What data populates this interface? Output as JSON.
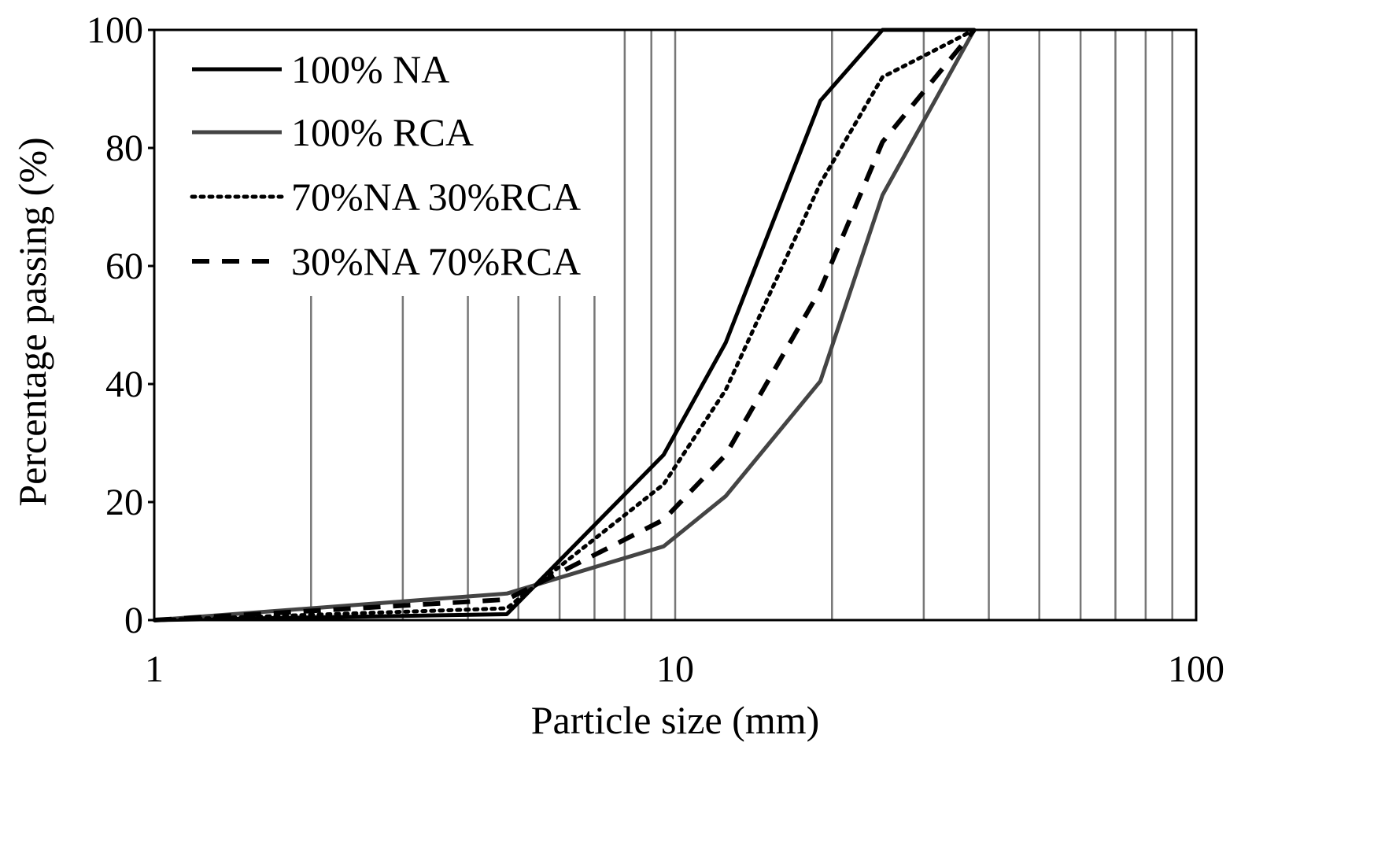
{
  "chart_data": {
    "type": "line",
    "x_scale": "log",
    "title": "",
    "xlabel": "Particle size (mm)",
    "ylabel": "Percentage passing (%)",
    "xlim": [
      1,
      100
    ],
    "ylim": [
      0,
      100
    ],
    "x_ticks": [
      {
        "value": 1,
        "label": "1"
      },
      {
        "value": 10,
        "label": "10"
      },
      {
        "value": 100,
        "label": "100"
      }
    ],
    "y_ticks": [
      {
        "value": 0,
        "label": "0"
      },
      {
        "value": 20,
        "label": "20"
      },
      {
        "value": 40,
        "label": "40"
      },
      {
        "value": 60,
        "label": "60"
      },
      {
        "value": 80,
        "label": "80"
      },
      {
        "value": 100,
        "label": "100"
      }
    ],
    "grid": {
      "vertical_minor": [
        2,
        3,
        4,
        5,
        6,
        7,
        8,
        9,
        10,
        20,
        30,
        40,
        50,
        60,
        70,
        80,
        90
      ],
      "horizontal": false
    },
    "legend_position": "top-left",
    "series": [
      {
        "name": "100% NA",
        "color": "#000000",
        "dash": "solid",
        "x": [
          1,
          4.75,
          9.5,
          12.5,
          19,
          25,
          37.5
        ],
        "y": [
          0,
          1,
          28,
          47,
          88,
          100,
          100
        ]
      },
      {
        "name": "100% RCA",
        "color": "#444444",
        "dash": "solid",
        "x": [
          1,
          4.75,
          9.5,
          12.5,
          19,
          25,
          37.5
        ],
        "y": [
          0,
          4.5,
          12.5,
          21,
          40.5,
          72,
          100
        ]
      },
      {
        "name": "70%NA 30%RCA",
        "color": "#000000",
        "dash": "dotted",
        "x": [
          1,
          4.75,
          9.5,
          12.5,
          19,
          25,
          37.5
        ],
        "y": [
          0,
          2,
          23,
          39,
          74,
          92,
          100
        ]
      },
      {
        "name": "30%NA 70%RCA",
        "color": "#000000",
        "dash": "dashed",
        "x": [
          1,
          4.75,
          9.5,
          12.5,
          19,
          25,
          37.5
        ],
        "y": [
          0,
          3.5,
          17,
          28,
          56,
          81,
          100
        ]
      }
    ]
  }
}
